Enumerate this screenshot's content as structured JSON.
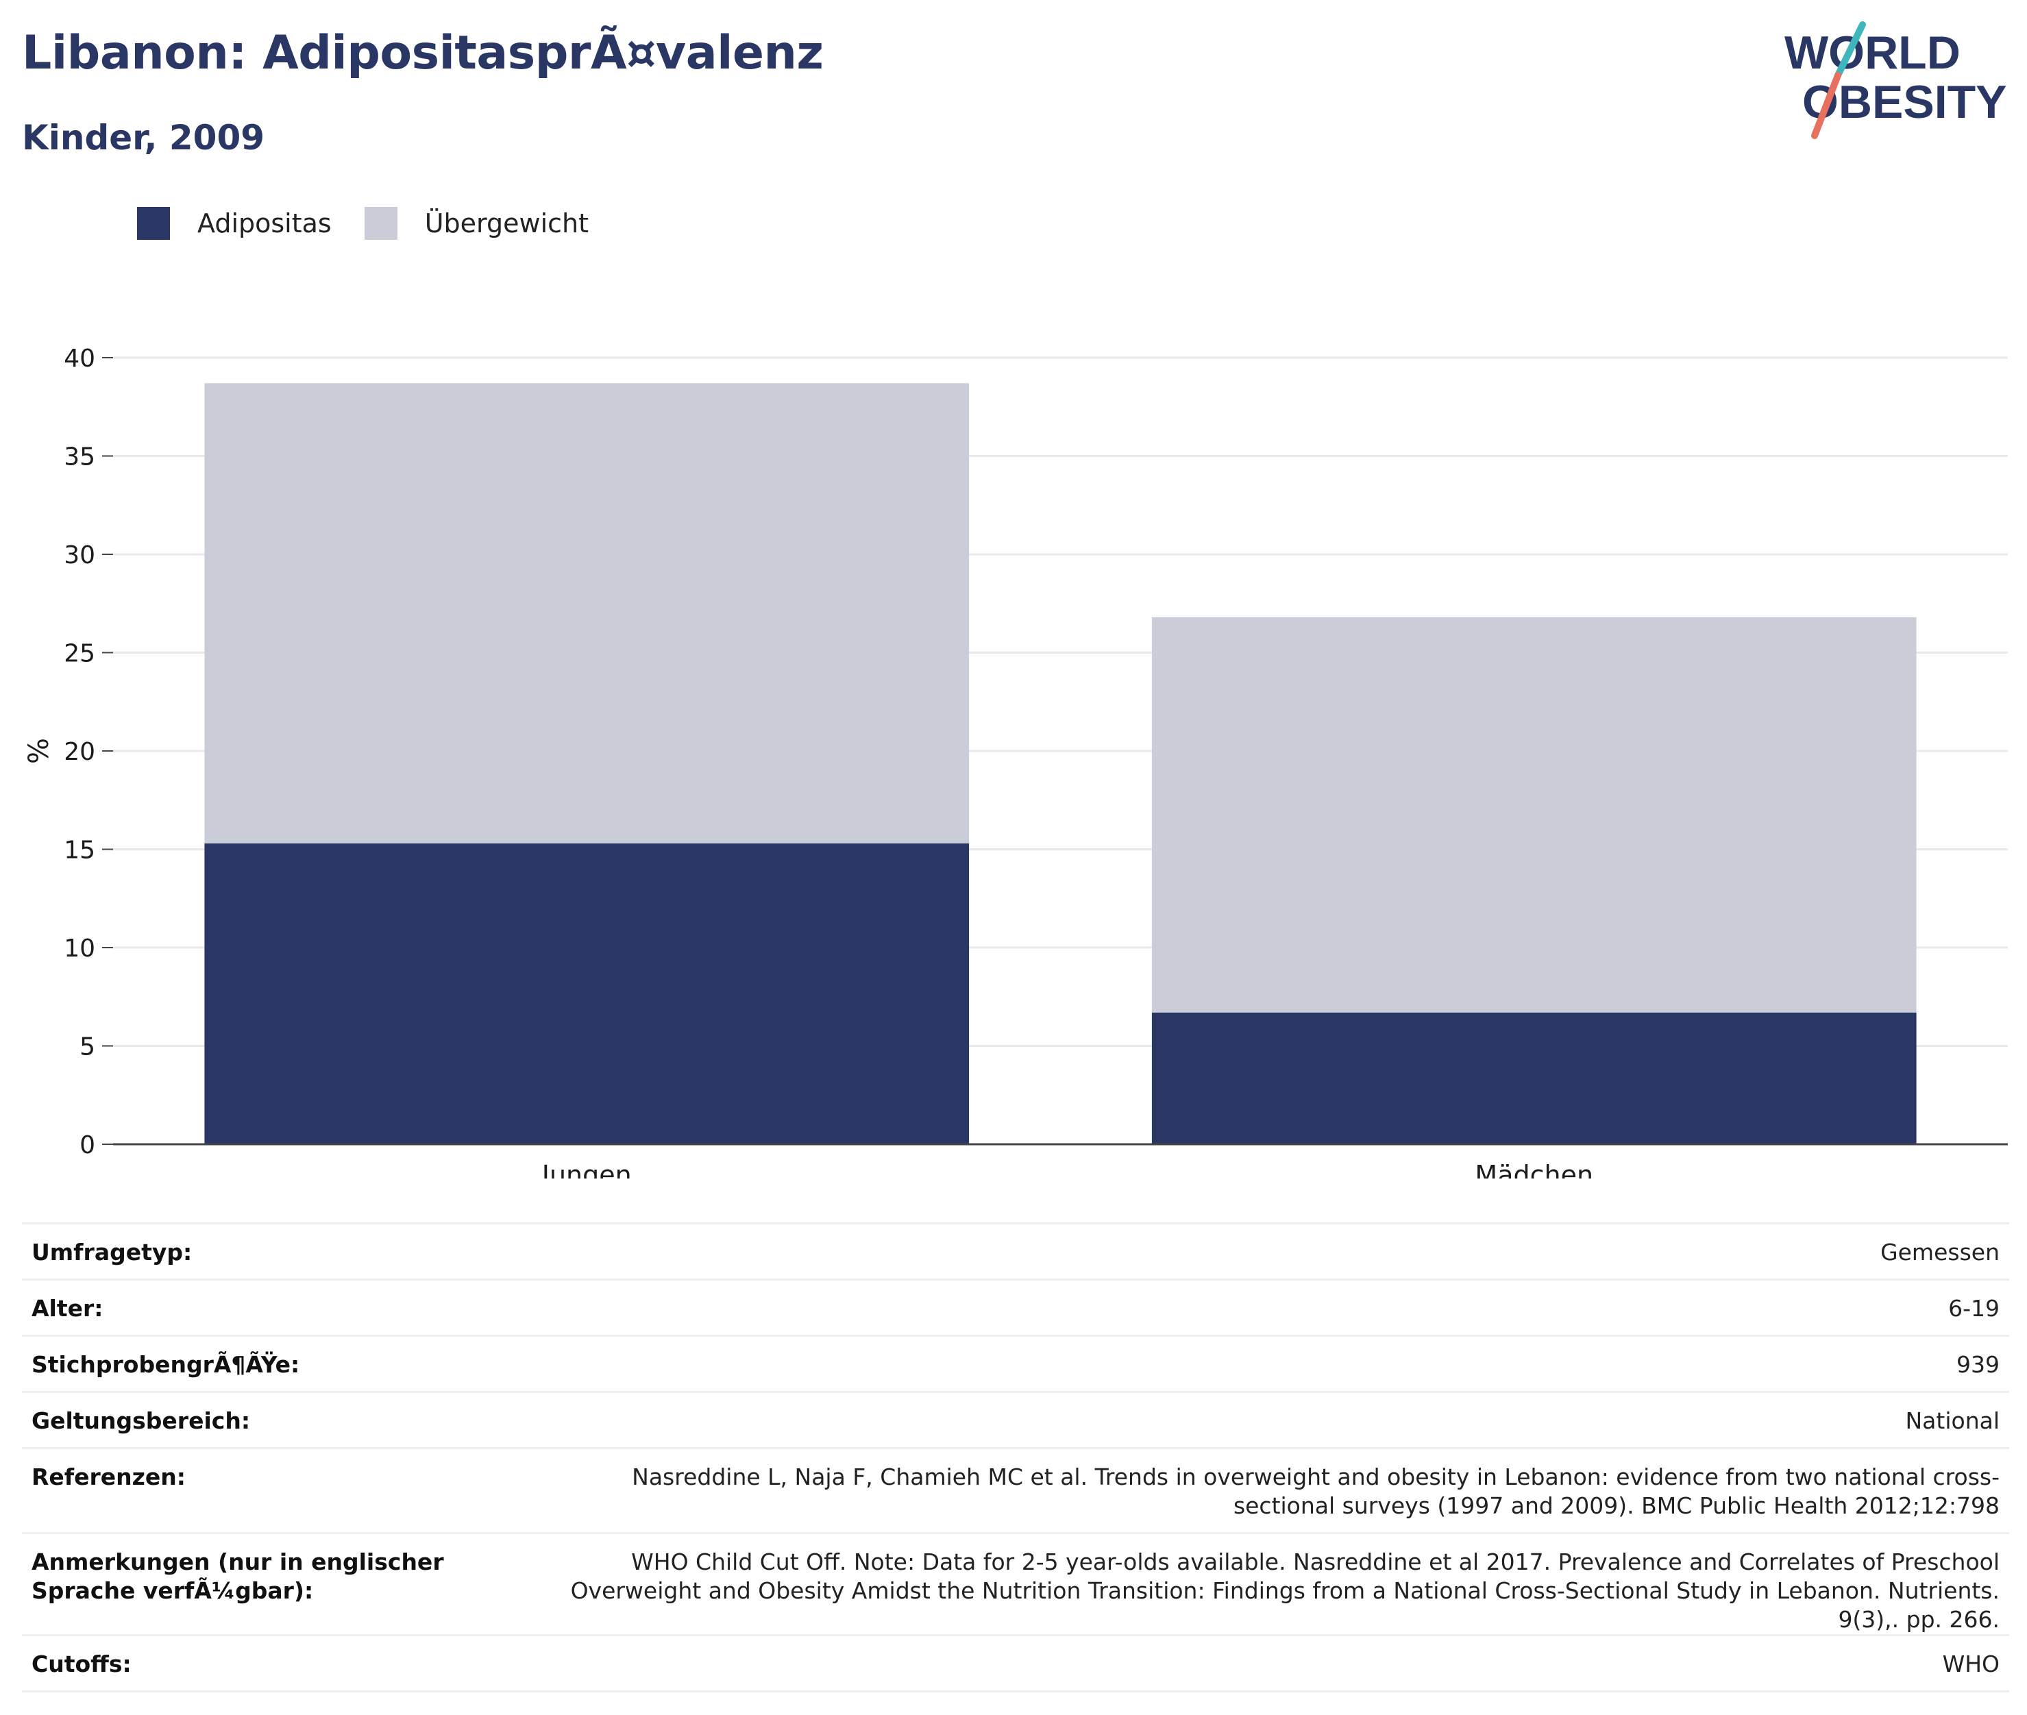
{
  "header": {
    "title": "Libanon: AdipositasprÃ¤valenz",
    "subtitle": "Kinder, 2009",
    "logo_line1": "WORLD",
    "logo_line2": "OBESITY"
  },
  "legend": {
    "items": [
      {
        "label": "Adipositas",
        "color": "#2a3764"
      },
      {
        "label": "Übergewicht",
        "color": "#cacdd8"
      }
    ]
  },
  "chart_data": {
    "type": "bar",
    "stacked": true,
    "categories": [
      "Jungen",
      "Mädchen"
    ],
    "series": [
      {
        "name": "Adipositas",
        "color": "#2a3764",
        "values": [
          15.3,
          6.7
        ]
      },
      {
        "name": "Übergewicht",
        "color": "#cacdd8",
        "values": [
          23.4,
          20.1
        ]
      }
    ],
    "ylabel": "%",
    "ylim": [
      0,
      40
    ],
    "yticks": [
      0,
      5,
      10,
      15,
      20,
      25,
      30,
      35,
      40
    ],
    "grid": true,
    "legend_position": "top-left"
  },
  "info": {
    "rows": [
      {
        "label": "Umfragetyp:",
        "value": "Gemessen"
      },
      {
        "label": "Alter:",
        "value": "6-19"
      },
      {
        "label": "StichprobengrÃ¶ÃŸe:",
        "value": "939"
      },
      {
        "label": "Geltungsbereich:",
        "value": "National"
      },
      {
        "label": "Referenzen:",
        "value": "Nasreddine L, Naja F, Chamieh MC et al. Trends in overweight and obesity in Lebanon: evidence from two national cross-sectional surveys (1997 and 2009). BMC Public Health 2012;12:798"
      },
      {
        "label": "Anmerkungen (nur in englischer Sprache verfÃ¼gbar):",
        "value": "WHO Child Cut Off. Note: Data for 2-5 year-olds available. Nasreddine et al 2017. Prevalence and Correlates of Preschool Overweight and Obesity Amidst the Nutrition Transition: Findings from a National Cross-Sectional Study in Lebanon. Nutrients. 9(3),. pp. 266."
      },
      {
        "label": "Cutoffs:",
        "value": "WHO"
      }
    ]
  }
}
